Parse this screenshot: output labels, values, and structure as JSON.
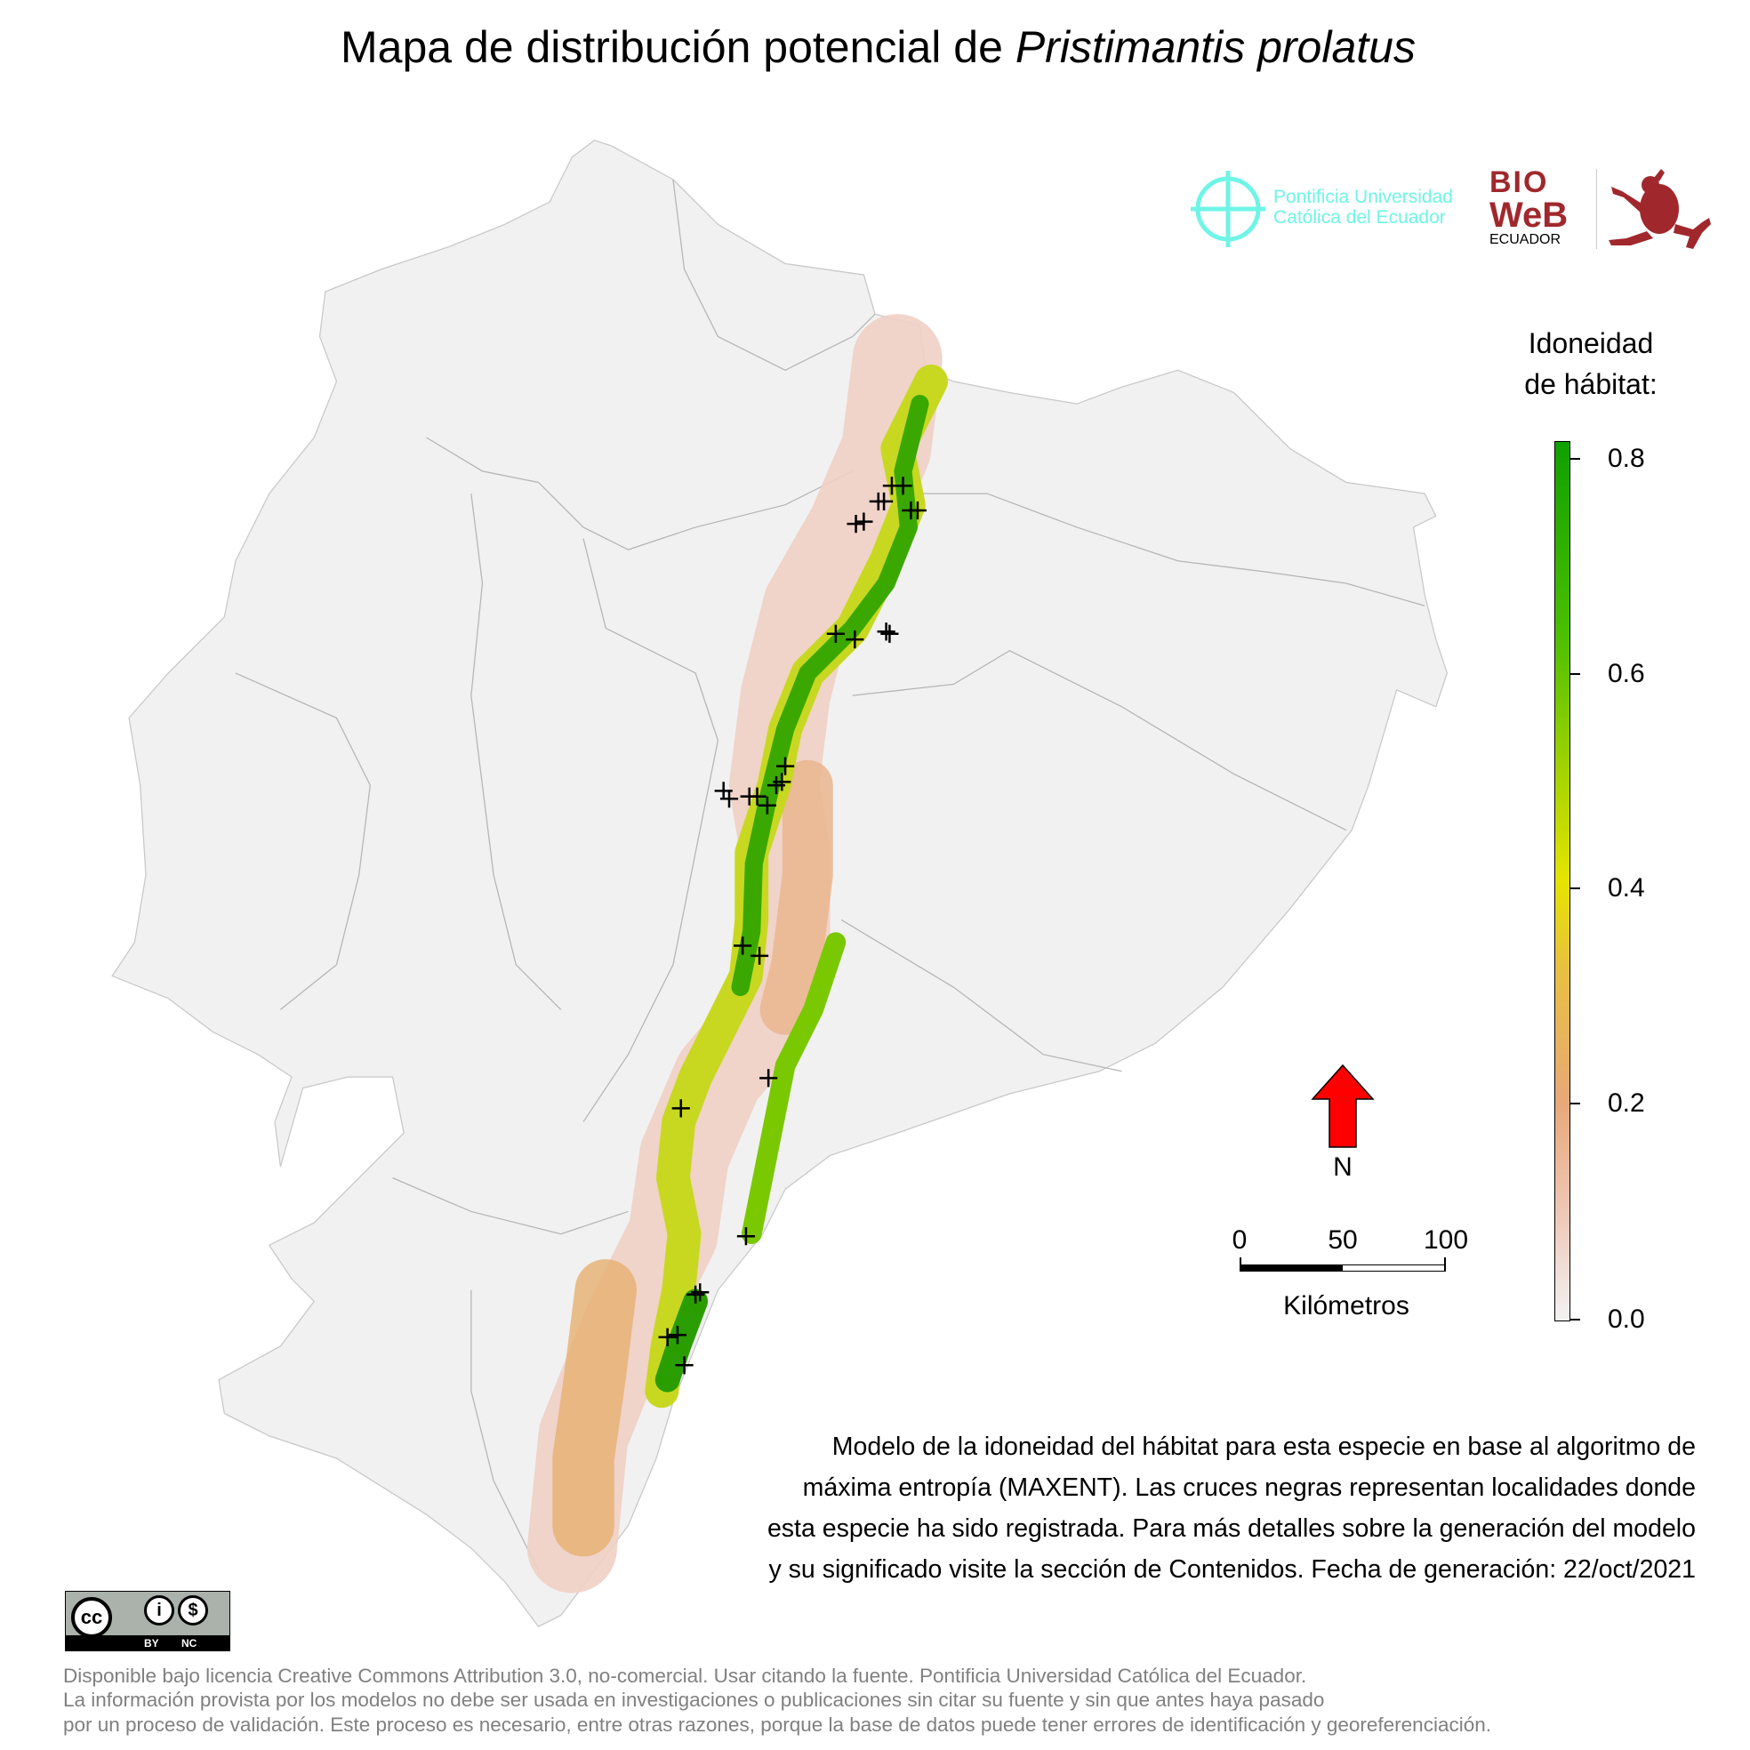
{
  "title": {
    "prefix": "Mapa de distribución potencial de ",
    "species": "Pristimantis prolatus"
  },
  "logos": {
    "puce_line1": "Pontificia Universidad",
    "puce_line2": "Católica del Ecuador",
    "bioweb_top": "BIO",
    "bioweb_mid": "WeB",
    "bioweb_bottom": "ECUADOR"
  },
  "legend": {
    "title_line1": "Idoneidad",
    "title_line2": "de hábitat:",
    "ticks": [
      "0.8",
      "0.6",
      "0.4",
      "0.2",
      "0.0"
    ],
    "range": [
      0.0,
      0.82
    ],
    "colors": {
      "low": "#f2f2f2",
      "mid": "#e6e400",
      "high": "#0fa000"
    }
  },
  "north": {
    "label": "N",
    "color": "#ff0000"
  },
  "scalebar": {
    "labels": [
      "0",
      "50",
      "100"
    ],
    "unit": "Kilómetros"
  },
  "description": [
    "Modelo de la idoneidad del hábitat para esta especie en base al algoritmo de",
    "máxima entropía (MAXENT). Las cruces negras representan localidades donde",
    "esta especie ha sido registrada. Para más detalles sobre la generación del modelo",
    "y su significado visite la sección de Contenidos. Fecha de generación: 22/oct/2021"
  ],
  "license_badge": {
    "by": "BY",
    "nc": "NC",
    "cc": "cc"
  },
  "footer": [
    "Disponible bajo licencia Creative Commons Attribution 3.0, no-comercial. Usar citando la fuente. Pontificia Universidad Católica del Ecuador.",
    "La información provista por los modelos no debe ser usada en investigaciones o publicaciones sin citar su fuente y sin que antes haya pasado",
    "por un proceso de validación. Este proceso es necesario, entre otras razones, porque la base de datos puede tener errores de identificación y georeferenciación."
  ]
}
